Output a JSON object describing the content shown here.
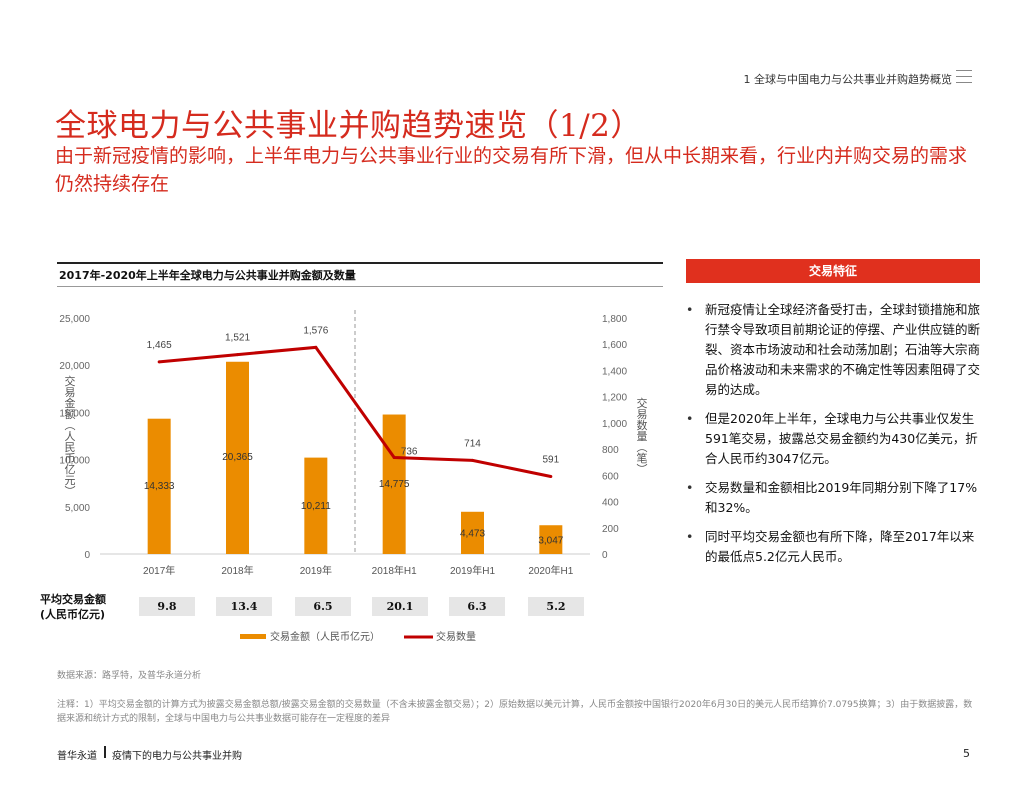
{
  "header": {
    "breadcrumb": "1 全球与中国电力与公共事业并购趋势概览"
  },
  "title": "全球电力与公共事业并购趋势速览（1/2）",
  "subtitle": "由于新冠疫情的影响，上半年电力与公共事业行业的交易有所下滑，但从中长期来看，行业内并购交易的需求仍然持续存在",
  "chart_heading": "2017年-2020年上半年全球电力与公共事业并购金额及数量",
  "chart_data": {
    "type": "bar+line",
    "title": "2017年-2020年上半年全球电力与公共事业并购金额及数量",
    "categories": [
      "2017年",
      "2018年",
      "2019年",
      "2018年H1",
      "2019年H1",
      "2020年H1"
    ],
    "series": [
      {
        "name": "交易金额（人民币亿元）",
        "type": "bar",
        "axis": "left",
        "color": "#eb8c00",
        "values": [
          14333,
          20365,
          10211,
          14775,
          4473,
          3047
        ],
        "labels": [
          "14,333",
          "20,365",
          "10,211",
          "14,775",
          "4,473",
          "3,047"
        ]
      },
      {
        "name": "交易数量",
        "type": "line",
        "axis": "right",
        "color": "#c00000",
        "values": [
          1465,
          1521,
          1576,
          736,
          714,
          591
        ],
        "labels": [
          "1,465",
          "1,521",
          "1,576",
          "736",
          "714",
          "591"
        ]
      }
    ],
    "left_axis": {
      "label": "交易金额（人民币亿元）",
      "min": 0,
      "max": 25000,
      "ticks": [
        0,
        5000,
        10000,
        15000,
        20000,
        25000
      ],
      "tick_labels": [
        "0",
        "5,000",
        "10,000",
        "15,000",
        "20,000",
        "25,000"
      ]
    },
    "right_axis": {
      "label": "交易数量（笔）",
      "min": 0,
      "max": 1800,
      "ticks": [
        0,
        200,
        400,
        600,
        800,
        1000,
        1200,
        1400,
        1600,
        1800
      ],
      "tick_labels": [
        "0",
        "200",
        "400",
        "600",
        "800",
        "1,000",
        "1,200",
        "1,400",
        "1,600",
        "1,800"
      ]
    },
    "divider": "dashed line between 2019年 and 2018年H1",
    "legend": [
      "交易金额（人民币亿元）",
      "交易数量"
    ],
    "legend_position": "bottom"
  },
  "avg": {
    "label_line1": "平均交易金额",
    "label_line2": "(人民币亿元)",
    "values": [
      "9.8",
      "13.4",
      "6.5",
      "20.1",
      "6.3",
      "5.2"
    ]
  },
  "features": {
    "header": "交易特征",
    "items": [
      "新冠疫情让全球经济备受打击，全球封锁措施和旅行禁令导致项目前期论证的停摆、产业供应链的断裂、资本市场波动和社会动荡加剧；石油等大宗商品价格波动和未来需求的不确定性等因素阻碍了交易的达成。",
      "但是2020年上半年，全球电力与公共事业仅发生591笔交易，披露总交易金额约为430亿美元，折合人民币约3047亿元。",
      "交易数量和金额相比2019年同期分别下降了17%和32%。",
      "同时平均交易金额也有所下降，降至2017年以来的最低点5.2亿元人民币。"
    ]
  },
  "source_note": "数据来源：路孚特，及普华永道分析",
  "footnote": "注释：1）平均交易金额的计算方式为披露交易金额总额/披露交易金额的交易数量（不含未披露金额交易）；2）原始数据以美元计算，人民币金额按中国银行2020年6月30日的美元人民币结算价7.0795换算；3）由于数据披露，数据来源和统计方式的限制，全球与中国电力与公共事业数据可能存在一定程度的差异",
  "footer": {
    "brand": "普华永道",
    "doc_title": "疫情下的电力与公共事业并购",
    "page_number": "5"
  },
  "colors": {
    "accent": "#d52b1e",
    "bar": "#eb8c00",
    "line": "#c00000"
  }
}
